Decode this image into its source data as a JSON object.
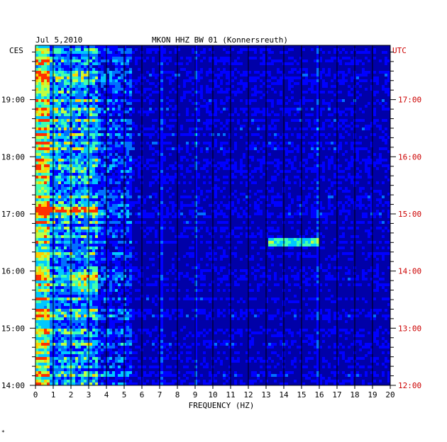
{
  "chart_data": {
    "type": "heatmap",
    "date": "Jul 5,2010",
    "title": "MKON HHZ BW 01 (Konnersreuth)",
    "left_zone_label": "CES",
    "right_zone_label": "UTC",
    "xlabel": "FREQUENCY (HZ)",
    "xlim": [
      0,
      20
    ],
    "x_ticks": [
      0,
      1,
      2,
      3,
      4,
      5,
      6,
      7,
      8,
      9,
      10,
      11,
      12,
      13,
      14,
      15,
      16,
      17,
      18,
      19,
      20
    ],
    "y_ticks_left": [
      "19:00",
      "18:00",
      "17:00",
      "16:00",
      "15:00",
      "14:00"
    ],
    "y_ticks_right": [
      "17:00",
      "16:00",
      "15:00",
      "14:00",
      "13:00",
      "12:00"
    ],
    "y_hours_left": [
      19,
      18,
      17,
      16,
      15,
      14
    ],
    "ylim_hours_left": [
      14,
      19.95
    ],
    "colors": {
      "background": "#0000a8",
      "grid": "#000000",
      "utc_label": "#cc0000",
      "scale": [
        "#0000a8",
        "#0000ff",
        "#0070ff",
        "#00c8ff",
        "#40ffb0",
        "#c0ff40",
        "#ffd000",
        "#ff3000"
      ]
    },
    "grid": true
  },
  "footer_mark": "*"
}
